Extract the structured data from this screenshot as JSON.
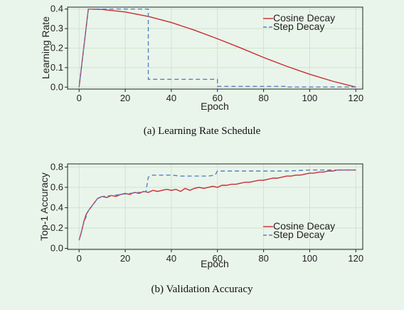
{
  "colors": {
    "cosine": "#cc2a36",
    "step": "#5b7fc4",
    "background": "#e9f5ea",
    "axis": "#222222"
  },
  "chart_data": [
    {
      "type": "line",
      "caption": "(a) Learning Rate Schedule",
      "xlabel": "Epoch",
      "ylabel": "Learning Rate",
      "xlim": [
        -5,
        123
      ],
      "ylim": [
        -0.01,
        0.41
      ],
      "xticks": [
        0,
        20,
        40,
        60,
        80,
        100,
        120
      ],
      "xtick_labels": [
        "0",
        "20",
        "40",
        "60",
        "80",
        "100",
        "120"
      ],
      "yticks": [
        0.0,
        0.1,
        0.2,
        0.3,
        0.4
      ],
      "ytick_labels": [
        "0.0",
        "0.1",
        "0.2",
        "0.3",
        "0.4"
      ],
      "grid": true,
      "legend_position": "top-right",
      "series": [
        {
          "name": "Cosine Decay",
          "color": "#cc2a36",
          "dash": "solid",
          "points": [
            [
              0,
              0.0
            ],
            [
              4,
              0.4
            ],
            [
              10,
              0.398
            ],
            [
              20,
              0.385
            ],
            [
              30,
              0.362
            ],
            [
              40,
              0.331
            ],
            [
              50,
              0.292
            ],
            [
              60,
              0.248
            ],
            [
              70,
              0.201
            ],
            [
              80,
              0.152
            ],
            [
              90,
              0.107
            ],
            [
              100,
              0.066
            ],
            [
              110,
              0.03
            ],
            [
              118,
              0.006
            ],
            [
              120,
              0.001
            ]
          ]
        },
        {
          "name": "Step Decay",
          "color": "#5b7fc4",
          "dash": "dashed",
          "points": [
            [
              0,
              0.0
            ],
            [
              4,
              0.4
            ],
            [
              30,
              0.4
            ],
            [
              30,
              0.04
            ],
            [
              60,
              0.04
            ],
            [
              60,
              0.004
            ],
            [
              90,
              0.004
            ],
            [
              90,
              0.0005
            ],
            [
              120,
              0.0005
            ]
          ]
        }
      ]
    },
    {
      "type": "line",
      "caption": "(b) Validation Accuracy",
      "xlabel": "Epoch",
      "ylabel": "Top-1 Accuracy",
      "xlim": [
        -5,
        123
      ],
      "ylim": [
        -0.01,
        0.83
      ],
      "xticks": [
        0,
        20,
        40,
        60,
        80,
        100,
        120
      ],
      "xtick_labels": [
        "0",
        "20",
        "40",
        "60",
        "80",
        "100",
        "120"
      ],
      "yticks": [
        0.0,
        0.2,
        0.4,
        0.6,
        0.8
      ],
      "ytick_labels": [
        "0.0",
        "0.2",
        "0.4",
        "0.6",
        "0.8"
      ],
      "grid": true,
      "legend_position": "bottom-right",
      "series": [
        {
          "name": "Cosine Decay",
          "color": "#cc2a36",
          "dash": "solid",
          "points": [
            [
              0,
              0.08
            ],
            [
              1,
              0.16
            ],
            [
              2,
              0.26
            ],
            [
              3,
              0.33
            ],
            [
              4,
              0.37
            ],
            [
              5,
              0.4
            ],
            [
              6,
              0.43
            ],
            [
              7,
              0.46
            ],
            [
              8,
              0.49
            ],
            [
              10,
              0.51
            ],
            [
              12,
              0.5
            ],
            [
              14,
              0.52
            ],
            [
              16,
              0.51
            ],
            [
              18,
              0.53
            ],
            [
              20,
              0.54
            ],
            [
              22,
              0.53
            ],
            [
              24,
              0.55
            ],
            [
              26,
              0.54
            ],
            [
              28,
              0.56
            ],
            [
              30,
              0.55
            ],
            [
              32,
              0.57
            ],
            [
              34,
              0.56
            ],
            [
              36,
              0.57
            ],
            [
              38,
              0.58
            ],
            [
              40,
              0.57
            ],
            [
              42,
              0.58
            ],
            [
              44,
              0.56
            ],
            [
              46,
              0.59
            ],
            [
              48,
              0.57
            ],
            [
              50,
              0.59
            ],
            [
              52,
              0.6
            ],
            [
              54,
              0.59
            ],
            [
              56,
              0.6
            ],
            [
              58,
              0.61
            ],
            [
              60,
              0.6
            ],
            [
              62,
              0.62
            ],
            [
              64,
              0.62
            ],
            [
              66,
              0.63
            ],
            [
              68,
              0.63
            ],
            [
              70,
              0.64
            ],
            [
              72,
              0.65
            ],
            [
              74,
              0.65
            ],
            [
              76,
              0.66
            ],
            [
              78,
              0.67
            ],
            [
              80,
              0.67
            ],
            [
              82,
              0.68
            ],
            [
              84,
              0.69
            ],
            [
              86,
              0.69
            ],
            [
              88,
              0.7
            ],
            [
              90,
              0.71
            ],
            [
              92,
              0.71
            ],
            [
              94,
              0.72
            ],
            [
              96,
              0.72
            ],
            [
              98,
              0.73
            ],
            [
              100,
              0.74
            ],
            [
              102,
              0.74
            ],
            [
              104,
              0.75
            ],
            [
              106,
              0.75
            ],
            [
              108,
              0.76
            ],
            [
              110,
              0.76
            ],
            [
              112,
              0.77
            ],
            [
              114,
              0.77
            ],
            [
              116,
              0.77
            ],
            [
              118,
              0.77
            ],
            [
              120,
              0.77
            ]
          ]
        },
        {
          "name": "Step Decay",
          "color": "#5b7fc4",
          "dash": "dashed",
          "points": [
            [
              0,
              0.08
            ],
            [
              2,
              0.25
            ],
            [
              4,
              0.37
            ],
            [
              6,
              0.43
            ],
            [
              8,
              0.49
            ],
            [
              10,
              0.51
            ],
            [
              14,
              0.52
            ],
            [
              18,
              0.53
            ],
            [
              22,
              0.54
            ],
            [
              26,
              0.55
            ],
            [
              29,
              0.56
            ],
            [
              30,
              0.7
            ],
            [
              32,
              0.72
            ],
            [
              36,
              0.72
            ],
            [
              40,
              0.72
            ],
            [
              44,
              0.71
            ],
            [
              48,
              0.71
            ],
            [
              52,
              0.71
            ],
            [
              56,
              0.71
            ],
            [
              59,
              0.72
            ],
            [
              60,
              0.76
            ],
            [
              70,
              0.76
            ],
            [
              80,
              0.76
            ],
            [
              90,
              0.76
            ],
            [
              100,
              0.77
            ],
            [
              110,
              0.77
            ],
            [
              120,
              0.77
            ]
          ]
        }
      ]
    }
  ]
}
